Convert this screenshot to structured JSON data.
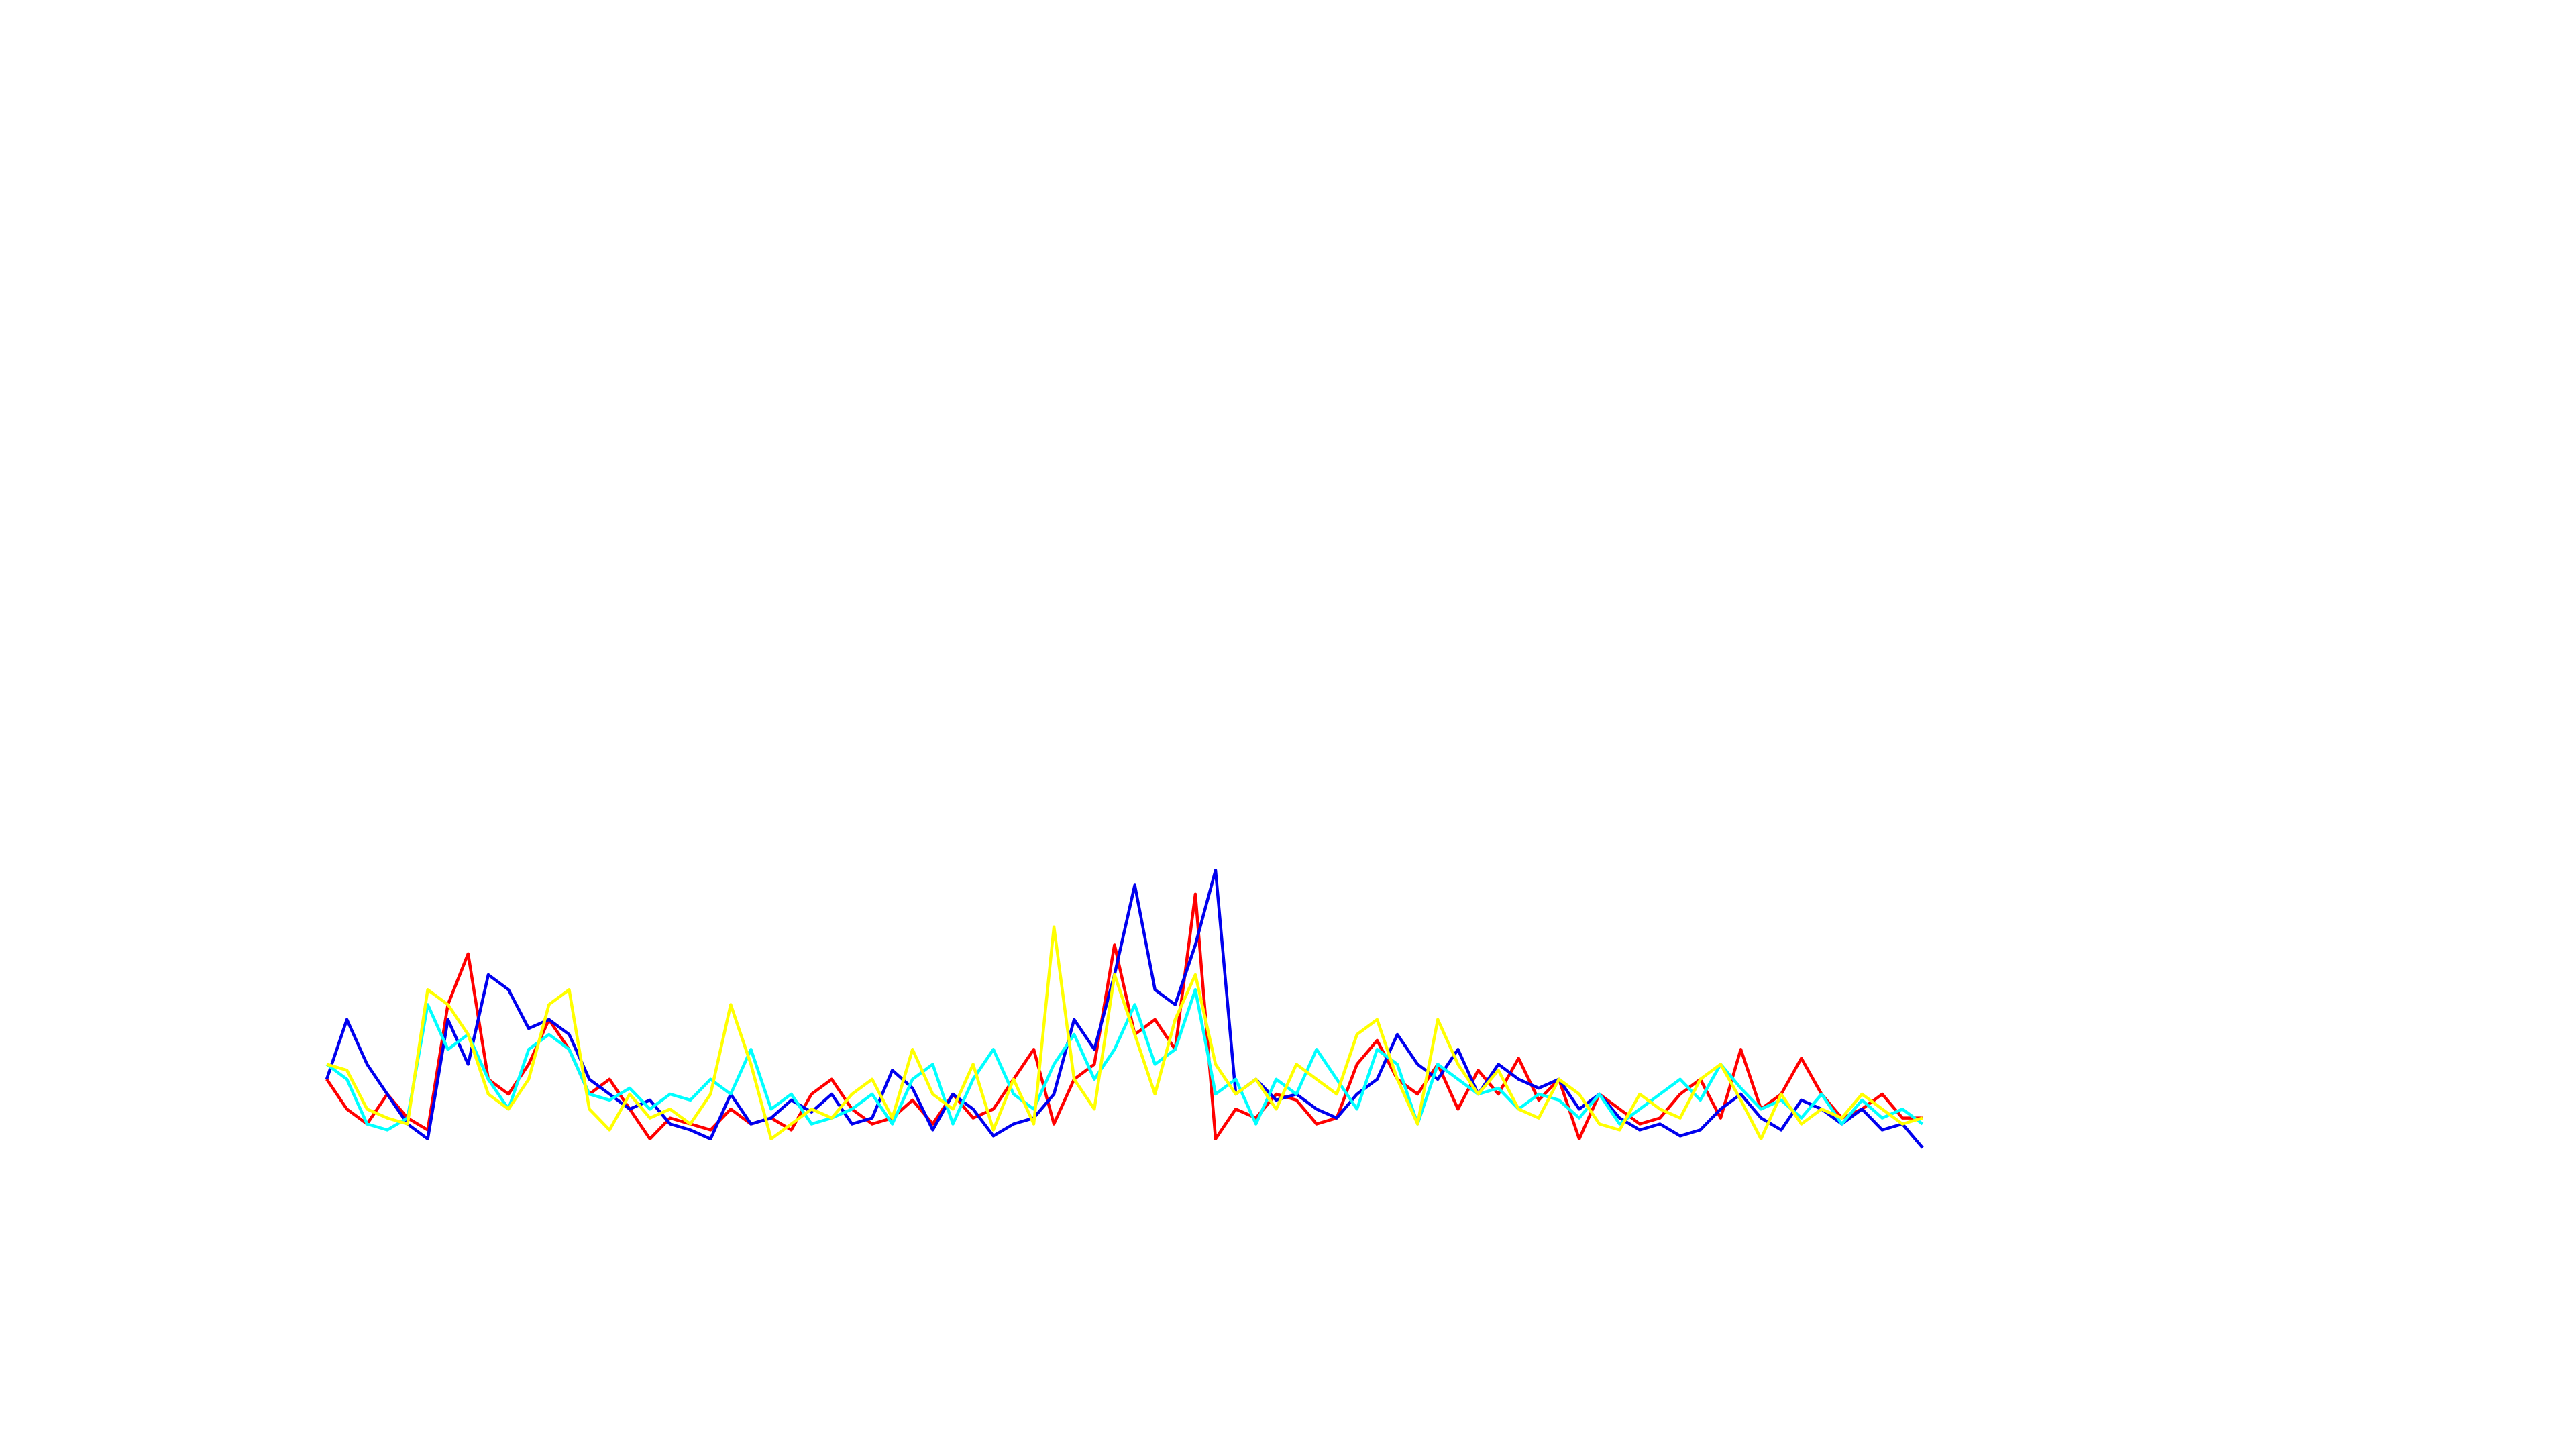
{
  "chart_data": {
    "type": "line",
    "ylim": [
      0,
      100
    ],
    "series": [
      {
        "color": "#ff0000",
        "values": [
          25,
          15,
          10,
          20,
          12,
          8,
          50,
          67,
          25,
          20,
          30,
          45,
          35,
          20,
          25,
          15,
          5,
          12,
          10,
          8,
          15,
          10,
          12,
          8,
          20,
          25,
          15,
          10,
          12,
          18,
          10,
          20,
          12,
          15,
          25,
          35,
          10,
          25,
          30,
          70,
          40,
          45,
          35,
          87,
          5,
          15,
          12,
          20,
          18,
          10,
          12,
          30,
          38,
          25,
          20,
          30,
          15,
          28,
          20,
          32,
          18,
          25,
          5,
          20,
          15,
          10,
          12,
          20,
          25,
          12,
          35,
          15,
          20,
          32,
          20,
          12,
          15,
          20,
          12,
          12
        ]
      },
      {
        "color": "#0000ee",
        "values": [
          25,
          45,
          30,
          20,
          10,
          5,
          45,
          30,
          60,
          55,
          42,
          45,
          40,
          25,
          20,
          15,
          18,
          10,
          8,
          5,
          20,
          10,
          12,
          18,
          14,
          20,
          10,
          12,
          28,
          22,
          8,
          20,
          15,
          6,
          10,
          12,
          20,
          45,
          35,
          60,
          90,
          55,
          50,
          70,
          95,
          20,
          25,
          18,
          20,
          15,
          12,
          20,
          25,
          40,
          30,
          25,
          35,
          20,
          30,
          25,
          22,
          25,
          15,
          20,
          12,
          8,
          10,
          6,
          8,
          15,
          20,
          12,
          8,
          18,
          15,
          10,
          15,
          8,
          10,
          2
        ]
      },
      {
        "color": "#00ffff",
        "values": [
          30,
          25,
          10,
          8,
          12,
          50,
          35,
          40,
          25,
          15,
          35,
          40,
          35,
          20,
          18,
          22,
          15,
          20,
          18,
          25,
          20,
          35,
          15,
          20,
          10,
          12,
          15,
          20,
          10,
          25,
          30,
          10,
          25,
          35,
          20,
          15,
          30,
          40,
          25,
          35,
          50,
          30,
          35,
          55,
          20,
          25,
          10,
          25,
          20,
          35,
          25,
          15,
          35,
          30,
          10,
          30,
          25,
          20,
          22,
          15,
          20,
          18,
          12,
          20,
          10,
          15,
          20,
          25,
          18,
          30,
          22,
          15,
          18,
          12,
          20,
          10,
          18,
          12,
          15,
          10
        ]
      },
      {
        "color": "#ffff00",
        "values": [
          30,
          28,
          15,
          12,
          10,
          55,
          50,
          40,
          20,
          15,
          25,
          50,
          55,
          15,
          8,
          20,
          12,
          15,
          10,
          20,
          50,
          30,
          5,
          10,
          15,
          12,
          20,
          25,
          12,
          35,
          20,
          15,
          30,
          8,
          25,
          10,
          76,
          25,
          15,
          60,
          40,
          20,
          45,
          60,
          30,
          20,
          25,
          15,
          30,
          25,
          20,
          40,
          45,
          25,
          10,
          45,
          30,
          20,
          28,
          15,
          12,
          25,
          20,
          10,
          8,
          20,
          15,
          12,
          25,
          30,
          18,
          5,
          20,
          10,
          15,
          12,
          20,
          15,
          10,
          12
        ]
      }
    ]
  }
}
